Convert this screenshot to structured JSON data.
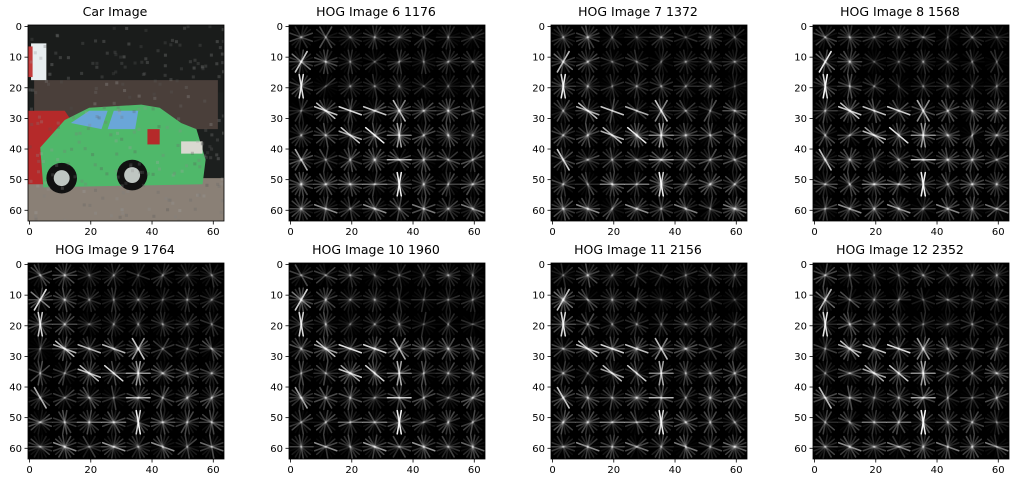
{
  "figure": {
    "panels": [
      {
        "title": "Car Image",
        "kind": "car"
      },
      {
        "title": "HOG Image 6 1176",
        "kind": "hog",
        "variant": 6
      },
      {
        "title": "HOG Image 7 1372",
        "kind": "hog",
        "variant": 7
      },
      {
        "title": "HOG Image 8 1568",
        "kind": "hog",
        "variant": 8
      },
      {
        "title": "HOG Image 9 1764",
        "kind": "hog",
        "variant": 9
      },
      {
        "title": "HOG Image 10 1960",
        "kind": "hog",
        "variant": 10
      },
      {
        "title": "HOG Image 11 2156",
        "kind": "hog",
        "variant": 11
      },
      {
        "title": "HOG Image 12 2352",
        "kind": "hog",
        "variant": 12
      }
    ],
    "axes": {
      "x_ticks": [
        "0",
        "20",
        "40",
        "60"
      ],
      "y_ticks": [
        "0",
        "10",
        "20",
        "30",
        "40",
        "50",
        "60"
      ],
      "x_values": [
        0,
        20,
        40,
        60
      ],
      "y_values": [
        0,
        10,
        20,
        30,
        40,
        50,
        60
      ],
      "range": [
        -0.5,
        63.5
      ]
    },
    "colors": {
      "hog_background": "#000000",
      "hog_stroke": "#ffffff",
      "car_body": "#4fb86a",
      "car_window": "#6aa6d8",
      "car_red": "#b52a2a",
      "scene_dark": "#1c1f1e",
      "road": "#8a8076"
    }
  }
}
